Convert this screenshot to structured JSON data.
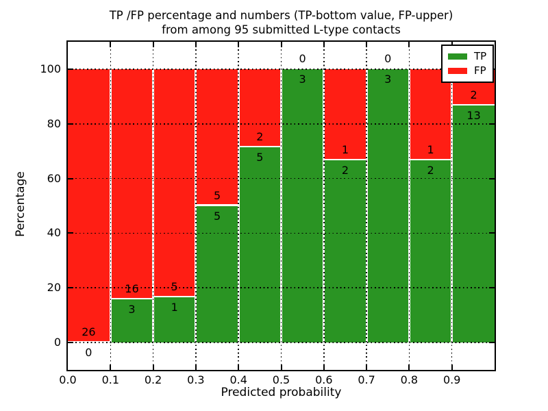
{
  "chart_data": {
    "type": "bar",
    "stacked": true,
    "title_line1": "TP /FP percentage and numbers (TP-bottom value, FP-upper)",
    "title_line2": "from among 95 submitted L-type contacts",
    "xlabel": "Predicted probability",
    "ylabel": "Percentage",
    "xlim": [
      0.0,
      1.0
    ],
    "ylim": [
      -10,
      110
    ],
    "yticks": [
      0,
      20,
      40,
      60,
      80,
      100
    ],
    "xtick_labels": [
      "0.0",
      "0.1",
      "0.2",
      "0.3",
      "0.4",
      "0.5",
      "0.6",
      "0.7",
      "0.8",
      "0.9"
    ],
    "grid": true,
    "legend_position": "upper right",
    "total_contacts": 95,
    "colors": {
      "tp_green": "#2a9423",
      "fp_red": "#ff1e14",
      "background": "#ffffff",
      "text": "#000000"
    },
    "legend": [
      {
        "label": "TP",
        "color_key": "tp_green"
      },
      {
        "label": "FP",
        "color_key": "fp_red"
      }
    ],
    "bins": [
      {
        "range": [
          0.0,
          0.1
        ],
        "tp_count": 0,
        "fp_count": 26,
        "tp_pct": 0.0,
        "fp_pct": 100.0
      },
      {
        "range": [
          0.1,
          0.2
        ],
        "tp_count": 3,
        "fp_count": 16,
        "tp_pct": 15.79,
        "fp_pct": 84.21
      },
      {
        "range": [
          0.2,
          0.3
        ],
        "tp_count": 1,
        "fp_count": 5,
        "tp_pct": 16.67,
        "fp_pct": 83.33
      },
      {
        "range": [
          0.3,
          0.4
        ],
        "tp_count": 5,
        "fp_count": 5,
        "tp_pct": 50.0,
        "fp_pct": 50.0
      },
      {
        "range": [
          0.4,
          0.5
        ],
        "tp_count": 5,
        "fp_count": 2,
        "tp_pct": 71.43,
        "fp_pct": 28.57
      },
      {
        "range": [
          0.5,
          0.6
        ],
        "tp_count": 3,
        "fp_count": 0,
        "tp_pct": 100.0,
        "fp_pct": 0.0
      },
      {
        "range": [
          0.6,
          0.7
        ],
        "tp_count": 2,
        "fp_count": 1,
        "tp_pct": 66.67,
        "fp_pct": 33.33
      },
      {
        "range": [
          0.7,
          0.8
        ],
        "tp_count": 3,
        "fp_count": 0,
        "tp_pct": 100.0,
        "fp_pct": 0.0
      },
      {
        "range": [
          0.8,
          0.9
        ],
        "tp_count": 2,
        "fp_count": 1,
        "tp_pct": 66.67,
        "fp_pct": 33.33
      },
      {
        "range": [
          0.9,
          1.0
        ],
        "tp_count": 13,
        "fp_count": 2,
        "tp_pct": 86.67,
        "fp_pct": 13.33
      }
    ]
  }
}
